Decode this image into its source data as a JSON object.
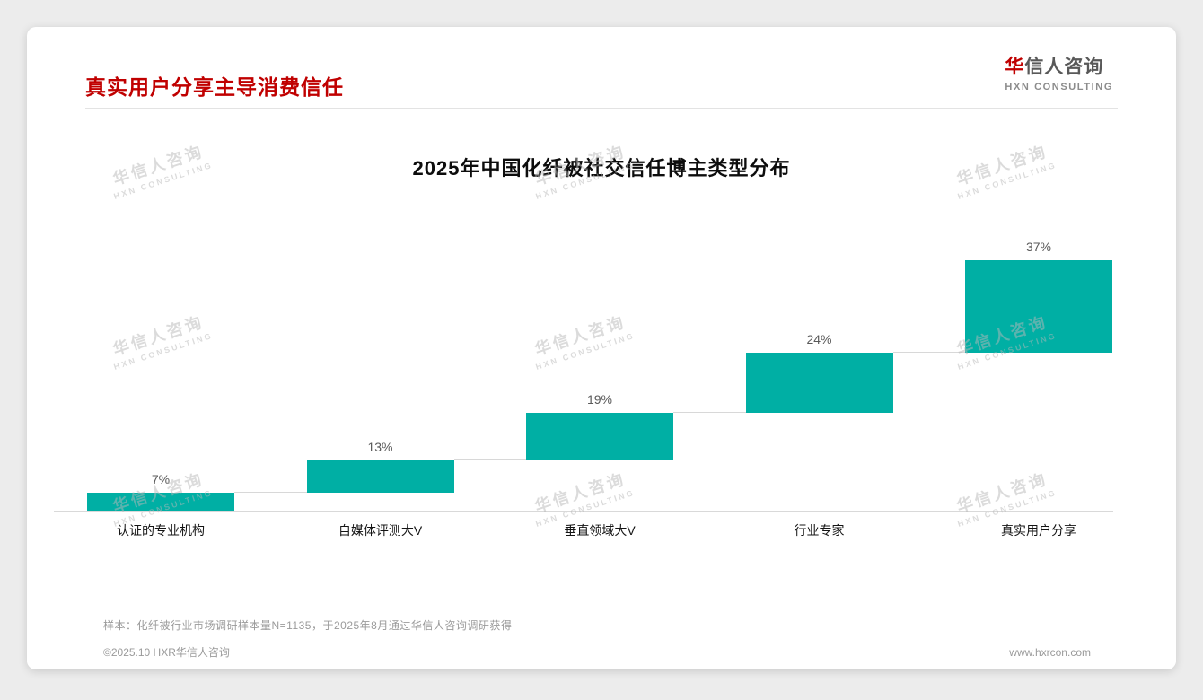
{
  "header": {
    "title": "真实用户分享主导消费信任"
  },
  "logo": {
    "main_first": "华",
    "main_rest": "信人咨询",
    "sub": "HXN CONSULTING"
  },
  "watermark": {
    "line1": "华信人咨询",
    "line2": "HXN CONSULTING"
  },
  "chart_data": {
    "type": "waterfall",
    "title": "2025年中国化纤被社交信任博主类型分布",
    "categories": [
      "认证的专业机构",
      "自媒体评测大V",
      "垂直领域大V",
      "行业专家",
      "真实用户分享"
    ],
    "values": [
      7,
      13,
      19,
      24,
      37
    ],
    "value_labels": [
      "7%",
      "13%",
      "19%",
      "24%",
      "37%"
    ],
    "cumulative": [
      7,
      20,
      39,
      63,
      100
    ],
    "unit": "%",
    "xlabel": "",
    "ylabel": "",
    "ylim": [
      0,
      100
    ],
    "grid": false,
    "legend": false,
    "bar_color": "#00afa4",
    "connector_color": "#d8d8d8"
  },
  "footnote": {
    "text": "样本：化纤被行业市场调研样本量N=1135，于2025年8月通过华信人咨询调研获得"
  },
  "footer": {
    "copyright": "©2025.10 HXR华信人咨询",
    "website": "www.hxrcon.com"
  }
}
